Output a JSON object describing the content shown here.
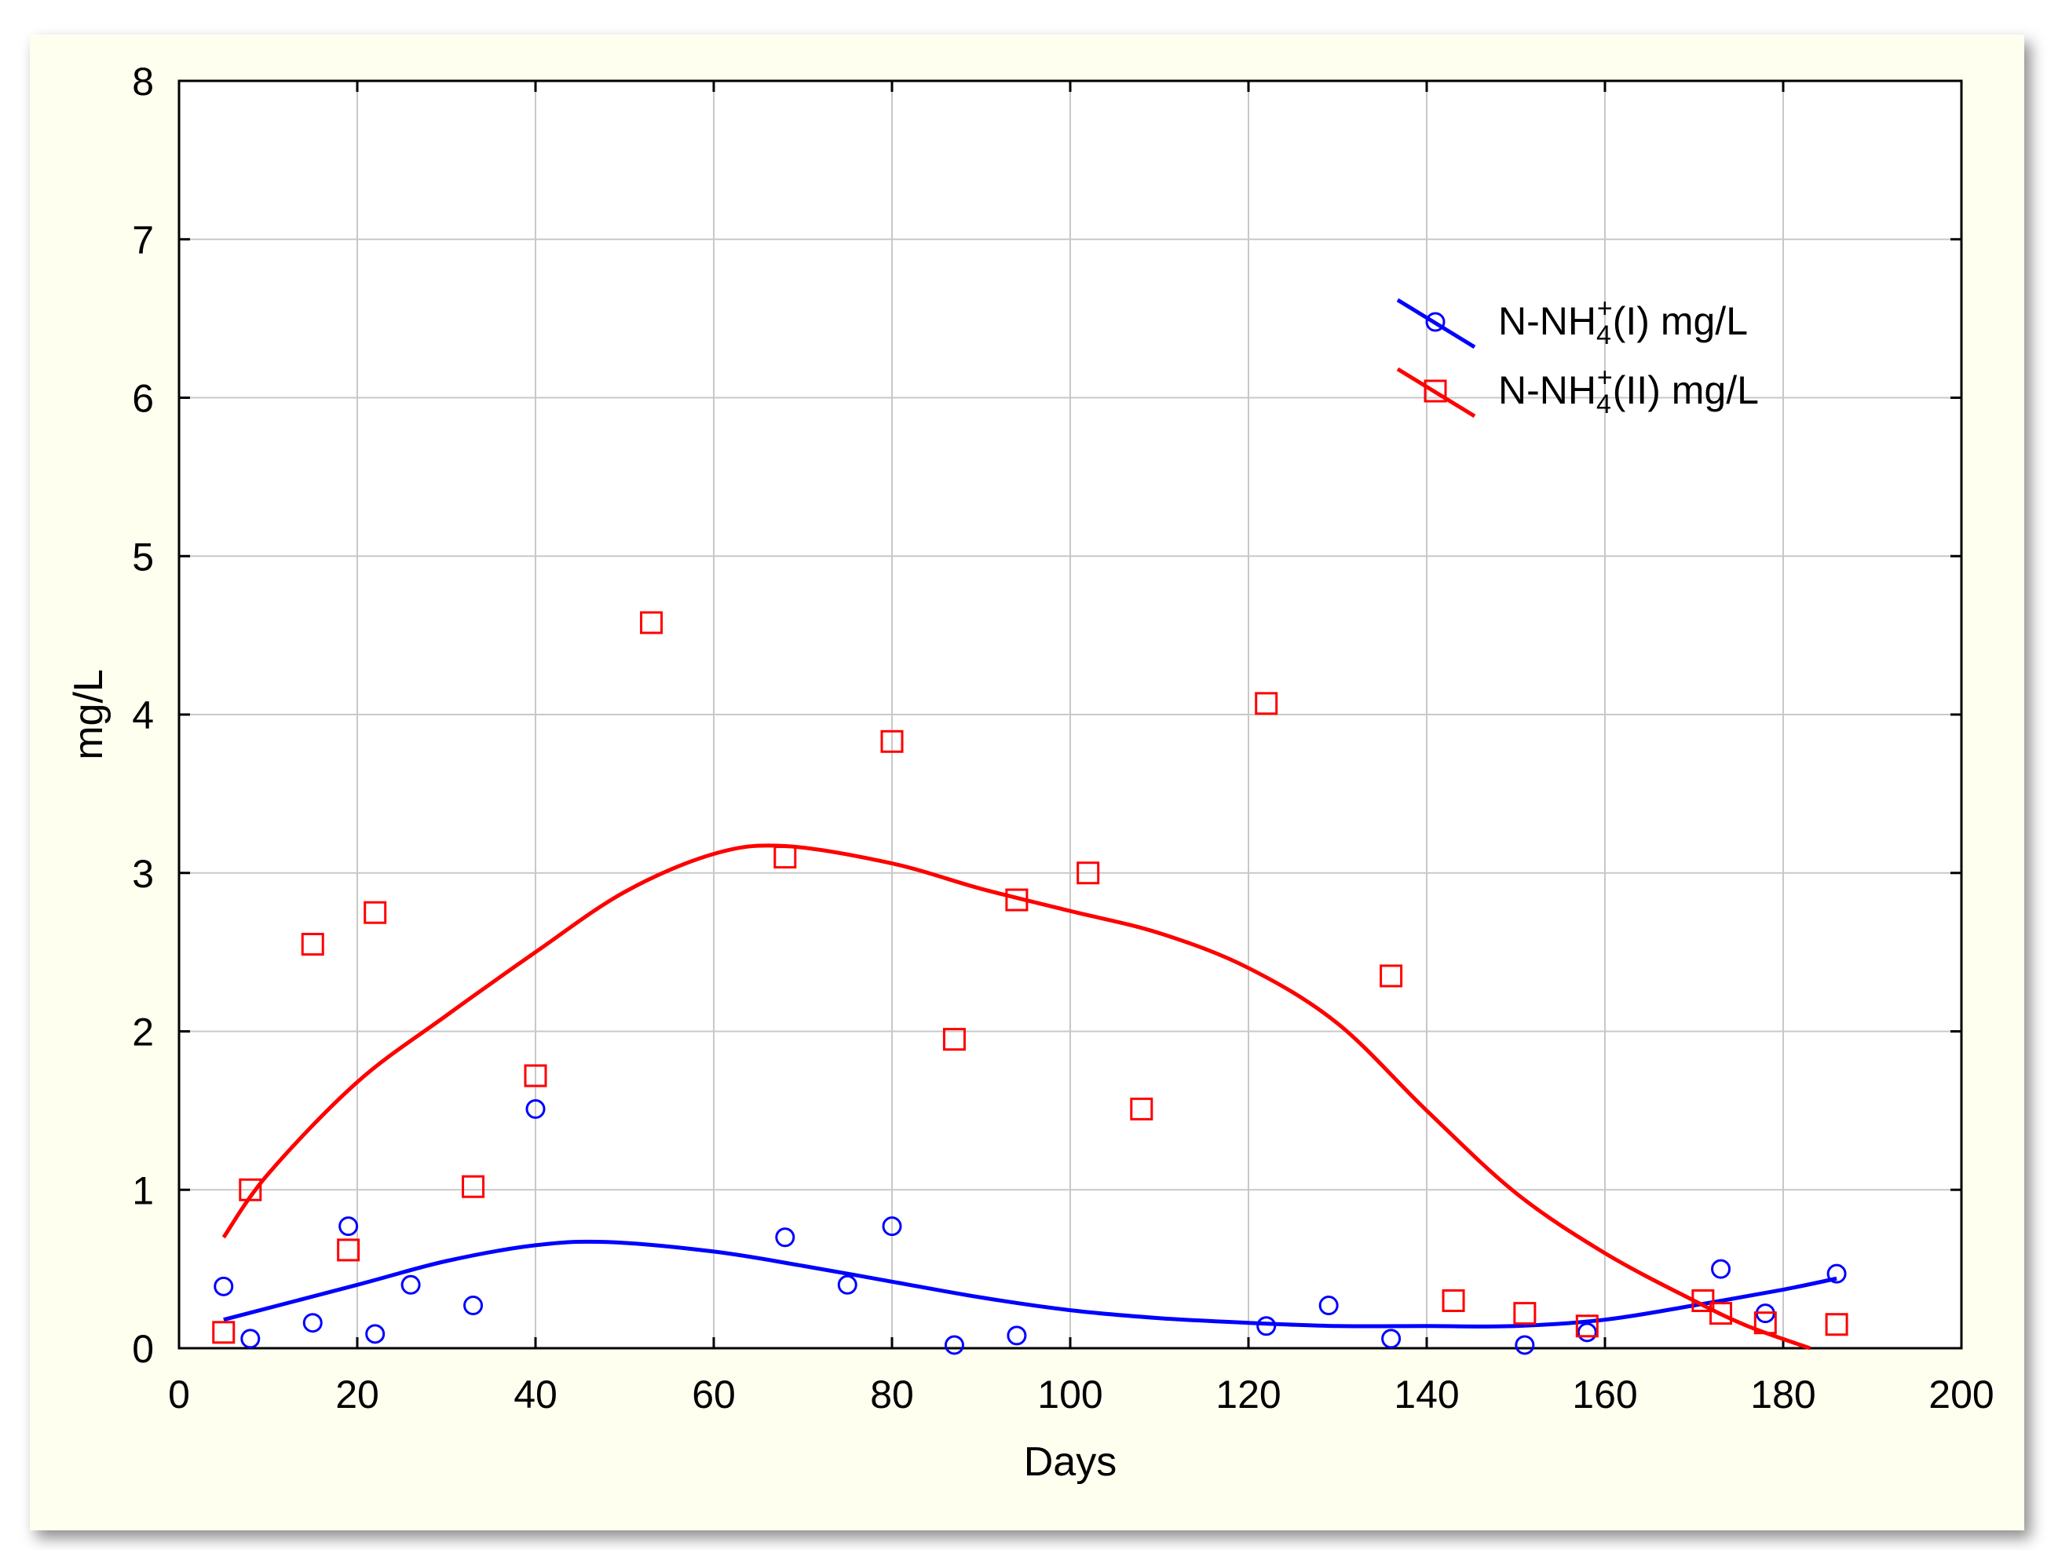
{
  "chart_data": {
    "type": "scatter",
    "title": "",
    "xlabel": "Days",
    "ylabel": "mg/L",
    "xlim": [
      0,
      200
    ],
    "ylim": [
      0,
      8
    ],
    "xticks": [
      0,
      20,
      40,
      60,
      80,
      100,
      120,
      140,
      160,
      180,
      200
    ],
    "yticks": [
      0,
      1,
      2,
      3,
      4,
      5,
      6,
      7,
      8
    ],
    "grid": true,
    "legend_position": "top-right",
    "series": [
      {
        "name_base": "N-NH",
        "name_sub": "4",
        "name_sup": "+",
        "name_rest": "(I) mg/L",
        "color": "#0000ff",
        "marker": "circle",
        "points": [
          [
            5,
            0.39
          ],
          [
            8,
            0.06
          ],
          [
            15,
            0.16
          ],
          [
            19,
            0.77
          ],
          [
            22,
            0.09
          ],
          [
            26,
            0.4
          ],
          [
            33,
            0.27
          ],
          [
            40,
            1.51
          ],
          [
            68,
            0.7
          ],
          [
            75,
            0.4
          ],
          [
            80,
            0.77
          ],
          [
            87,
            0.02
          ],
          [
            94,
            0.08
          ],
          [
            122,
            0.14
          ],
          [
            129,
            0.27
          ],
          [
            136,
            0.06
          ],
          [
            151,
            0.02
          ],
          [
            158,
            0.1
          ],
          [
            173,
            0.5
          ],
          [
            178,
            0.22
          ],
          [
            186,
            0.47
          ]
        ],
        "fit": [
          [
            5,
            0.18
          ],
          [
            20,
            0.4
          ],
          [
            30,
            0.55
          ],
          [
            40,
            0.65
          ],
          [
            48,
            0.67
          ],
          [
            60,
            0.61
          ],
          [
            70,
            0.52
          ],
          [
            80,
            0.42
          ],
          [
            90,
            0.32
          ],
          [
            100,
            0.24
          ],
          [
            110,
            0.19
          ],
          [
            120,
            0.16
          ],
          [
            130,
            0.14
          ],
          [
            140,
            0.14
          ],
          [
            150,
            0.14
          ],
          [
            160,
            0.18
          ],
          [
            170,
            0.27
          ],
          [
            180,
            0.37
          ],
          [
            186,
            0.44
          ]
        ]
      },
      {
        "name_base": "N-NH",
        "name_sub": "4",
        "name_sup": "+",
        "name_rest": "(II) mg/L",
        "color": "#ff0000",
        "marker": "square",
        "points": [
          [
            5,
            0.1
          ],
          [
            8,
            1.0
          ],
          [
            15,
            2.55
          ],
          [
            19,
            0.62
          ],
          [
            22,
            2.75
          ],
          [
            33,
            1.02
          ],
          [
            40,
            1.72
          ],
          [
            53,
            4.58
          ],
          [
            68,
            3.1
          ],
          [
            80,
            3.83
          ],
          [
            87,
            1.95
          ],
          [
            94,
            2.83
          ],
          [
            102,
            3.0
          ],
          [
            108,
            1.51
          ],
          [
            122,
            4.07
          ],
          [
            136,
            2.35
          ],
          [
            143,
            0.3
          ],
          [
            151,
            0.22
          ],
          [
            158,
            0.14
          ],
          [
            171,
            0.3
          ],
          [
            173,
            0.22
          ],
          [
            178,
            0.16
          ],
          [
            186,
            0.15
          ]
        ],
        "fit": [
          [
            5,
            0.7
          ],
          [
            10,
            1.1
          ],
          [
            20,
            1.68
          ],
          [
            30,
            2.1
          ],
          [
            40,
            2.5
          ],
          [
            50,
            2.88
          ],
          [
            60,
            3.12
          ],
          [
            68,
            3.17
          ],
          [
            80,
            3.06
          ],
          [
            90,
            2.9
          ],
          [
            100,
            2.76
          ],
          [
            110,
            2.62
          ],
          [
            120,
            2.4
          ],
          [
            130,
            2.05
          ],
          [
            140,
            1.5
          ],
          [
            150,
            0.98
          ],
          [
            160,
            0.6
          ],
          [
            170,
            0.3
          ],
          [
            176,
            0.14
          ],
          [
            183,
            0.0
          ]
        ]
      }
    ]
  }
}
